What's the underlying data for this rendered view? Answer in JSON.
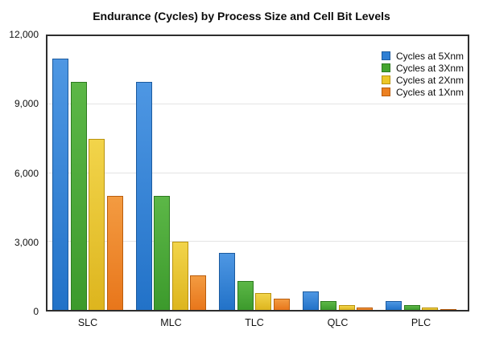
{
  "chart_data": {
    "type": "bar",
    "title": "Endurance (Cycles) by Process Size and Cell Bit Levels",
    "xlabel": "",
    "ylabel": "",
    "categories": [
      "SLC",
      "MLC",
      "TLC",
      "QLC",
      "PLC"
    ],
    "series": [
      {
        "name": "Cycles at 5Xnm",
        "values": [
          11000,
          10000,
          2500,
          800,
          400
        ],
        "color": {
          "swatch": "#2e7fd4",
          "top": "#4e97e3",
          "bottom": "#2272c8",
          "border": "#1b5a9e"
        }
      },
      {
        "name": "Cycles at 3Xnm",
        "values": [
          10000,
          5000,
          1250,
          400,
          200
        ],
        "color": {
          "swatch": "#44a52f",
          "top": "#5cb747",
          "bottom": "#3c9a2c",
          "border": "#2d7a1f"
        }
      },
      {
        "name": "Cycles at 2Xnm",
        "values": [
          7500,
          3000,
          750,
          200,
          100
        ],
        "color": {
          "swatch": "#ecc727",
          "top": "#f2d44a",
          "bottom": "#ddb51e",
          "border": "#b89310"
        }
      },
      {
        "name": "Cycles at 1Xnm",
        "values": [
          5000,
          1500,
          500,
          100,
          50
        ],
        "color": {
          "swatch": "#ec8021",
          "top": "#f39b41",
          "bottom": "#e8761b",
          "border": "#b95d0d"
        }
      }
    ],
    "ylim": [
      0,
      12000
    ],
    "yticks": [
      {
        "value": 12000,
        "label": "12,000"
      },
      {
        "value": 9000,
        "label": "9,000"
      },
      {
        "value": 6000,
        "label": "6,000"
      },
      {
        "value": 3000,
        "label": "3,000"
      },
      {
        "value": 0,
        "label": "0"
      }
    ],
    "gridlines": [
      3000,
      6000,
      9000
    ],
    "grid": "horizontal",
    "legend_position": "top-right-inside",
    "plot_border_color": "#2e2e2e",
    "gridline_color": "#e4e4e4",
    "background_color": "#ffffff"
  }
}
